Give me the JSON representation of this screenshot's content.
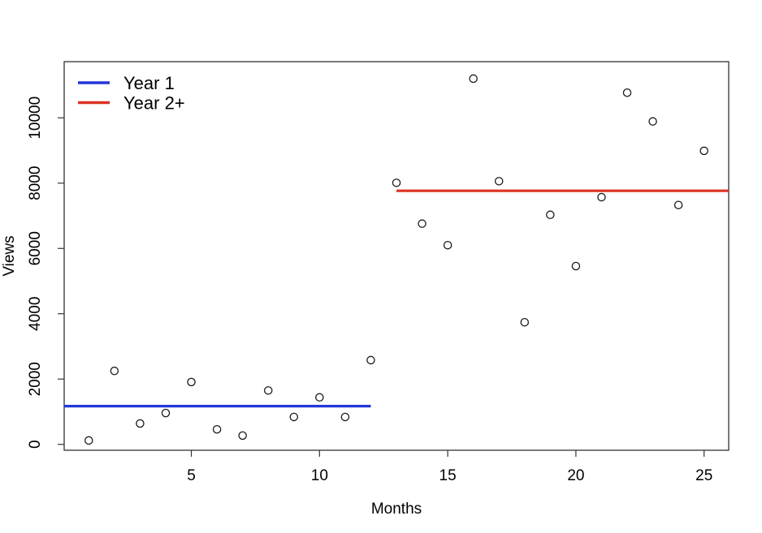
{
  "window": {
    "background": "#ffffff"
  },
  "chart_data": {
    "type": "scatter",
    "title": "",
    "xlabel": "Months",
    "ylabel": "Views",
    "x": [
      1,
      2,
      3,
      4,
      5,
      6,
      7,
      8,
      9,
      10,
      11,
      12,
      13,
      14,
      15,
      16,
      17,
      18,
      19,
      20,
      21,
      22,
      23,
      24,
      25
    ],
    "y": [
      120,
      2250,
      640,
      960,
      1910,
      460,
      270,
      1650,
      840,
      1440,
      840,
      2580,
      8010,
      6760,
      6100,
      11200,
      8060,
      3740,
      7030,
      5460,
      7570,
      10770,
      9890,
      7330,
      8990
    ],
    "point_style": {
      "shape": "open-circle",
      "color": "#1a1a1a"
    },
    "xlim": [
      0.04,
      25.96
    ],
    "ylim": [
      -180,
      11720
    ],
    "xticks": [
      5,
      10,
      15,
      20,
      25
    ],
    "yticks": [
      0,
      2000,
      4000,
      6000,
      8000,
      10000
    ],
    "grid": false,
    "legend": {
      "position": "top-left",
      "box": false,
      "entries": [
        {
          "label": "Year 1",
          "color": "#2337d7"
        },
        {
          "label": "Year 2+",
          "color": "#dc3223"
        }
      ]
    },
    "mean_lines": [
      {
        "series": "Year 1",
        "value": 1170,
        "x_start": 0.04,
        "x_end": 12,
        "color": "#2337d7"
      },
      {
        "series": "Year 2+",
        "value": 7765,
        "x_start": 13,
        "x_end": 25.96,
        "color": "#dc3223"
      }
    ],
    "colors": {
      "axis": "#333333",
      "text": "#000000",
      "background": "#ffffff"
    }
  }
}
